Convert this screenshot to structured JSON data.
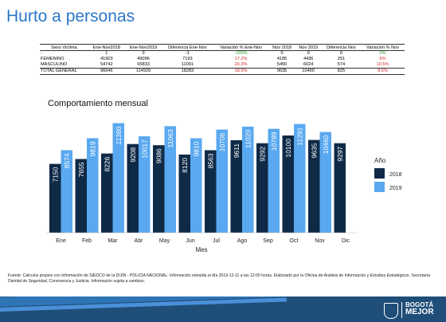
{
  "page": {
    "title": "Hurto a personas"
  },
  "summary_table": {
    "headers": [
      "Sexo Victima",
      "Ene-Nov2018",
      "Ene-Nov2019",
      "Diferencia Ene-Nov",
      "Variación % Ene-Nov",
      "Nov 2018",
      "Nov 2019",
      "Diferencia Nov",
      "Variación % Nov"
    ],
    "rows": [
      {
        "cells": [
          "-",
          "1",
          "0",
          "-1",
          "-100%",
          "0",
          "0",
          "0",
          "0%"
        ],
        "var_colors": [
          "green",
          "green"
        ]
      },
      {
        "cells": [
          "FEMENINO",
          "41903",
          "49096",
          "7193",
          "17.2%",
          "4185",
          "4436",
          "251",
          "6%"
        ],
        "var_colors": [
          "red",
          "red"
        ]
      },
      {
        "cells": [
          "MASCULINO",
          "54742",
          "65833",
          "11091",
          "20.3%",
          "5450",
          "6024",
          "574",
          "10.5%"
        ],
        "var_colors": [
          "red",
          "red"
        ]
      },
      {
        "cells": [
          "TOTAL GENERAL",
          "96646",
          "114929",
          "18283",
          "18.9%",
          "9635",
          "10460",
          "825",
          "8.6%"
        ],
        "var_colors": [
          "red",
          "red"
        ]
      }
    ]
  },
  "chart_data": {
    "type": "bar",
    "title": "Comportamiento mensual",
    "xlabel": "Mes",
    "ylabel": "",
    "legend_title": "Año",
    "legend_position": "right",
    "grid": false,
    "ylim": [
      0,
      12000
    ],
    "categories": [
      "Ene",
      "Feb",
      "Mar",
      "Abr",
      "May",
      "Jun",
      "Jul",
      "Ago",
      "Sep",
      "Oct",
      "Nov",
      "Dic"
    ],
    "series": [
      {
        "name": "2018",
        "color": "#0f2a47",
        "values": [
          7150,
          7655,
          8226,
          9208,
          9086,
          8120,
          8563,
          9611,
          9292,
          10100,
          9635,
          9297
        ]
      },
      {
        "name": "2019",
        "color": "#5aa9f0",
        "values": [
          8574,
          9819,
          11380,
          10017,
          11063,
          9810,
          10706,
          11020,
          10789,
          11291,
          10460,
          null
        ]
      }
    ]
  },
  "source_note": "Fuente: Cálculos propios con información de SIEDCO de la DIJIN - POLICÍA NACIONAL. Información extraída el día 2019-12-11 a las 12:00 horas. Elaborado por la Oficina de Análisis de Información y Estudios Estratégicos. Secretaría Distrital de Seguridad, Convivencia y Justicia. Información sujeta a cambios.",
  "footer": {
    "background": "#1f4e79",
    "logo_line1": "BOGOTÁ",
    "logo_line2": "MEJOR",
    "seal_icon": "bogota-seal-icon"
  }
}
